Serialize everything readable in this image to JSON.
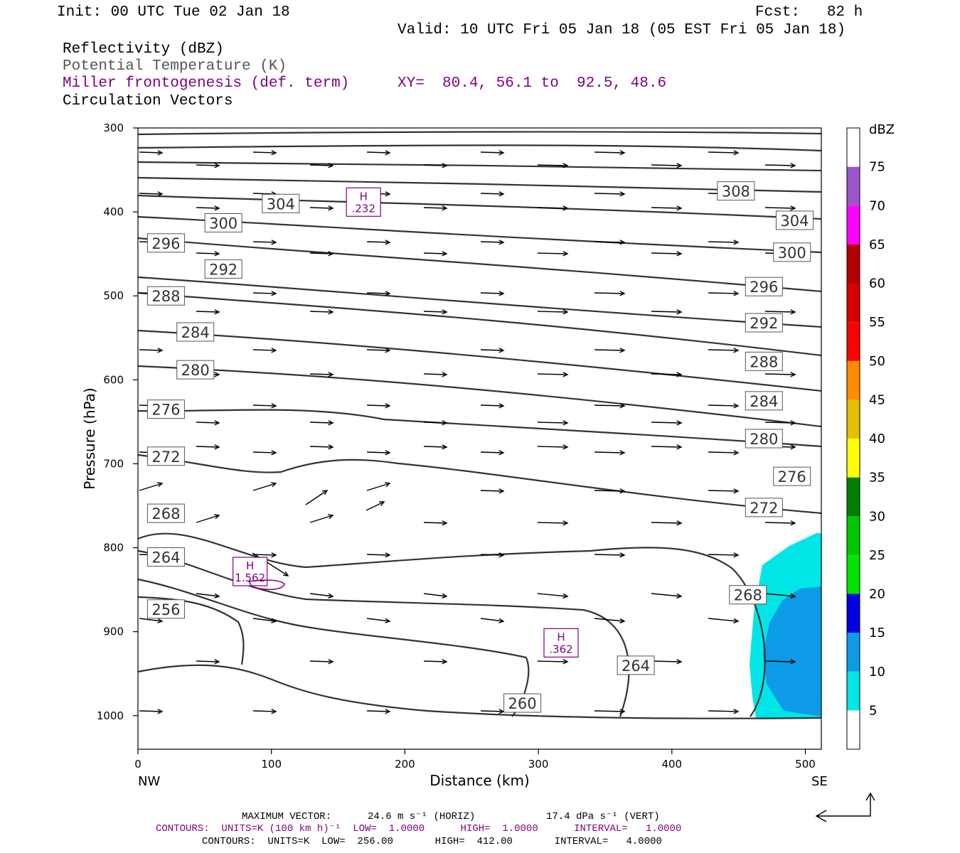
{
  "header": {
    "init": "Init: 00 UTC Tue 02 Jan 18",
    "fcst": "Fcst:   82 h",
    "valid": "Valid: 10 UTC Fri 05 Jan 18 (05 EST Fri 05 Jan 18)",
    "field1": "Reflectivity (dBZ)",
    "field2": "Potential Temperature (K)",
    "field3": "Miller frontogenesis (def. term)",
    "field4": "Circulation Vectors",
    "xy": "XY=  80.4, 56.1 to  92.5, 48.6"
  },
  "footer": {
    "maxvec_label": "MAXIMUM VECTOR:",
    "maxvec_h": "24.6 m s⁻¹ (HORIZ)",
    "maxvec_v": "17.4 dPa s⁻¹ (VERT)",
    "contours1": "CONTOURS:  UNITS=K (100 km h)⁻¹  LOW=  1.0000      HIGH=  1.0000      INTERVAL=   1.0000",
    "contours2": "CONTOURS:  UNITS=K  LOW=  256.00       HIGH=  412.00       INTERVAL=   4.0000"
  },
  "colors": {
    "contour": "#333333",
    "front": "#7f007f",
    "refl_5": "#00e5e5",
    "refl_10": "#0d9be8"
  },
  "chart_data": {
    "type": "cross-section",
    "xlabel": "Distance (km)",
    "ylabel": "Pressure (hPa)",
    "xlim": [
      0,
      512
    ],
    "ylim": [
      1040,
      300
    ],
    "xticks": [
      0,
      100,
      200,
      300,
      400,
      500
    ],
    "yticks": [
      300,
      400,
      500,
      600,
      700,
      800,
      900,
      1000
    ],
    "x_end_labels": [
      "NW",
      "SE"
    ],
    "colorbar": {
      "title": "dBZ",
      "levels": [
        5,
        10,
        15,
        20,
        25,
        30,
        35,
        40,
        45,
        50,
        55,
        60,
        65,
        70,
        75
      ],
      "colors": [
        "#ffffff",
        "#00e5e5",
        "#0d9be8",
        "#0000e5",
        "#00e500",
        "#00c800",
        "#007f00",
        "#ffff00",
        "#e5bf00",
        "#ff8c00",
        "#ff0000",
        "#d80000",
        "#b20000",
        "#ff00ff",
        "#9955c9",
        "#ffffff"
      ]
    },
    "theta_labels": [
      {
        "v": "308",
        "x": 448,
        "p": 375
      },
      {
        "v": "304",
        "x": 107,
        "p": 390
      },
      {
        "v": "304",
        "x": 492,
        "p": 410
      },
      {
        "v": "300",
        "x": 64,
        "p": 413
      },
      {
        "v": "300",
        "x": 490,
        "p": 448
      },
      {
        "v": "296",
        "x": 21,
        "p": 437
      },
      {
        "v": "296",
        "x": 469,
        "p": 489
      },
      {
        "v": "292",
        "x": 64,
        "p": 468
      },
      {
        "v": "292",
        "x": 469,
        "p": 532
      },
      {
        "v": "288",
        "x": 21,
        "p": 500
      },
      {
        "v": "288",
        "x": 469,
        "p": 578
      },
      {
        "v": "284",
        "x": 43,
        "p": 543
      },
      {
        "v": "284",
        "x": 469,
        "p": 625
      },
      {
        "v": "280",
        "x": 43,
        "p": 588
      },
      {
        "v": "280",
        "x": 469,
        "p": 670
      },
      {
        "v": "276",
        "x": 21,
        "p": 635
      },
      {
        "v": "276",
        "x": 490,
        "p": 715
      },
      {
        "v": "272",
        "x": 21,
        "p": 691
      },
      {
        "v": "272",
        "x": 469,
        "p": 752
      },
      {
        "v": "268",
        "x": 21,
        "p": 759
      },
      {
        "v": "268",
        "x": 457,
        "p": 856
      },
      {
        "v": "264",
        "x": 21,
        "p": 811
      },
      {
        "v": "264",
        "x": 373,
        "p": 940
      },
      {
        "v": "256",
        "x": 21,
        "p": 873
      },
      {
        "v": "260",
        "x": 288,
        "p": 985
      }
    ],
    "frontogenesis_maxima": [
      {
        "label": "H",
        "value": ".232",
        "x": 169,
        "p": 390
      },
      {
        "label": "H",
        "value": "1.562",
        "x": 84,
        "p": 830
      },
      {
        "label": "H",
        "value": ".362",
        "x": 317,
        "p": 915
      }
    ]
  }
}
